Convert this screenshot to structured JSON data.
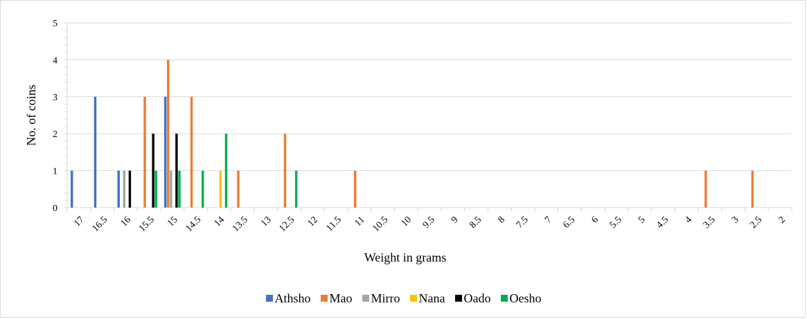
{
  "chart_data": {
    "type": "bar",
    "xlabel": "Weight in grams",
    "ylabel": "No. of coins",
    "ylim": [
      0,
      5
    ],
    "yticks": [
      "0",
      "1",
      "2",
      "3",
      "4",
      "5"
    ],
    "grid": true,
    "legend_position": "bottom",
    "categories": [
      "17",
      "16.5",
      "16",
      "15.5",
      "15",
      "14.5",
      "14",
      "13.5",
      "13",
      "12.5",
      "12",
      "11.5",
      "11",
      "10.5",
      "10",
      "9.5",
      "9",
      "8.5",
      "8",
      "7.5",
      "7",
      "6.5",
      "6",
      "5.5",
      "5",
      "4.5",
      "4",
      "3.5",
      "3",
      "2.5",
      "2"
    ],
    "series": [
      {
        "name": "Athsho",
        "color": "#4472c4",
        "points": [
          [
            17.0,
            1
          ],
          [
            16.5,
            3
          ],
          [
            16.0,
            1
          ],
          [
            15.0,
            3
          ]
        ]
      },
      {
        "name": "Mao",
        "color": "#ed7d31",
        "points": [
          [
            15.5,
            3
          ],
          [
            15.0,
            4
          ],
          [
            14.5,
            3
          ],
          [
            13.5,
            1
          ],
          [
            12.5,
            2
          ],
          [
            11.0,
            1
          ],
          [
            3.5,
            1
          ],
          [
            2.5,
            1
          ]
        ]
      },
      {
        "name": "Mirro",
        "color": "#a5a5a5",
        "points": [
          [
            16.0,
            1
          ],
          [
            15.0,
            1
          ]
        ]
      },
      {
        "name": "Nana",
        "color": "#ffc000",
        "points": [
          [
            14.0,
            1
          ]
        ]
      },
      {
        "name": "Oado",
        "color": "#000000",
        "points": [
          [
            16.0,
            1
          ],
          [
            15.5,
            2
          ],
          [
            15.0,
            2
          ]
        ]
      },
      {
        "name": "Oesho",
        "color": "#00b050",
        "points": [
          [
            15.5,
            1
          ],
          [
            15.0,
            1
          ],
          [
            14.5,
            1
          ],
          [
            14.0,
            2
          ],
          [
            12.5,
            1
          ]
        ]
      }
    ]
  }
}
